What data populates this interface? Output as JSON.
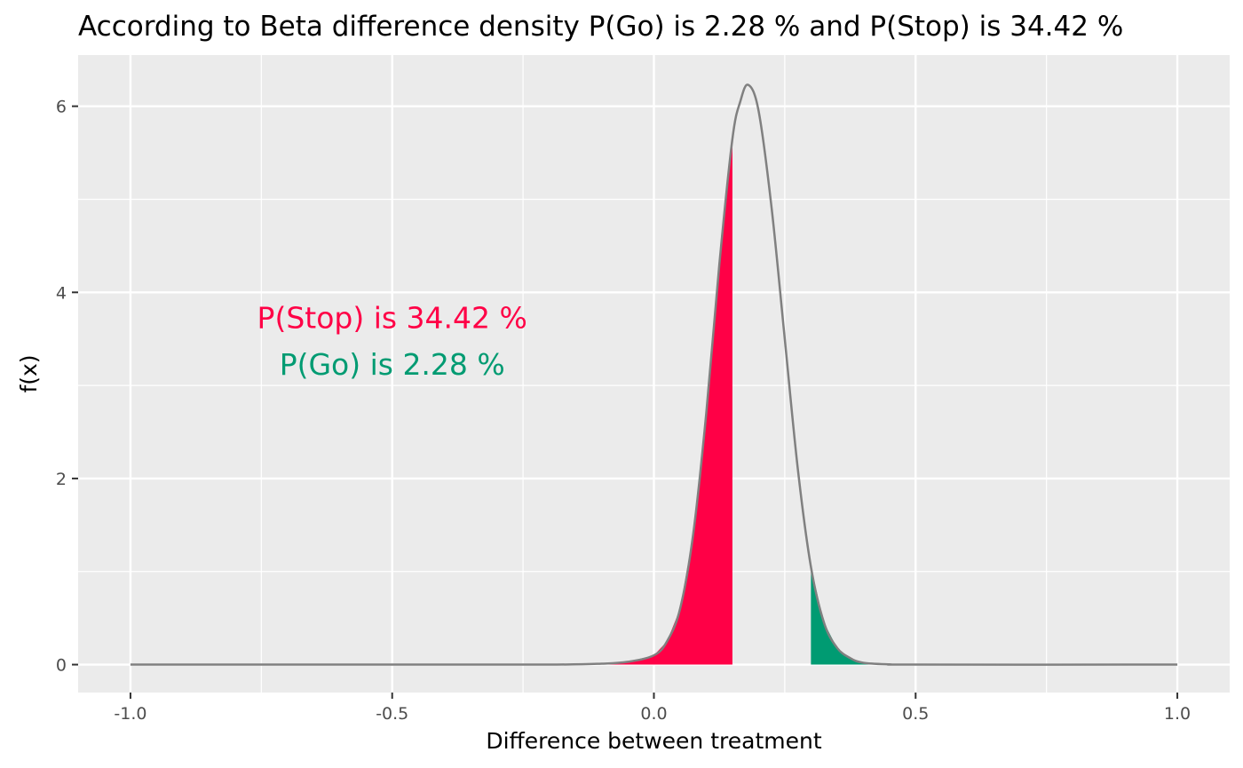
{
  "chart_data": {
    "type": "area",
    "title": "According to Beta difference density P(Go) is 2.28 % and P(Stop) is 34.42 %",
    "xlabel": "Difference between treatment",
    "ylabel": "f(x)",
    "xlim": [
      -1.1,
      1.1
    ],
    "ylim": [
      -0.3,
      6.55
    ],
    "x_ticks": [
      -1.0,
      -0.5,
      0.0,
      0.5,
      1.0
    ],
    "x_tick_labels": [
      "-1.0",
      "-0.5",
      "0.0",
      "0.5",
      "1.0"
    ],
    "y_ticks": [
      0,
      2,
      4,
      6
    ],
    "y_tick_labels": [
      "0",
      "2",
      "4",
      "6"
    ],
    "grid": true,
    "density_curve": {
      "x": [
        -1.0,
        -0.5,
        -0.2,
        -0.1,
        -0.05,
        0.0,
        0.025,
        0.05,
        0.075,
        0.1,
        0.125,
        0.15,
        0.165,
        0.18,
        0.2,
        0.225,
        0.25,
        0.275,
        0.3,
        0.325,
        0.35,
        0.375,
        0.4,
        0.45,
        0.5,
        1.0
      ],
      "y": [
        0,
        0,
        0,
        0.01,
        0.03,
        0.1,
        0.25,
        0.6,
        1.4,
        2.7,
        4.3,
        5.65,
        6.05,
        6.23,
        5.95,
        4.9,
        3.5,
        2.1,
        1.05,
        0.45,
        0.18,
        0.07,
        0.02,
        0.003,
        0,
        0
      ],
      "color": "#808080"
    },
    "regions": [
      {
        "name": "Stop",
        "x_from": -1.0,
        "x_to": 0.15,
        "color": "#FF0046"
      },
      {
        "name": "Go",
        "x_from": 0.3,
        "x_to": 1.0,
        "color": "#009B72"
      }
    ],
    "annotations": [
      {
        "text": "P(Stop) is 34.42 %",
        "x": -0.5,
        "y": 3.73,
        "color": "#FF0046"
      },
      {
        "text": "P(Go) is 2.28 %",
        "x": -0.5,
        "y": 3.23,
        "color": "#009B72"
      }
    ],
    "colors": {
      "panel_background": "#EBEBEB",
      "grid": "#FFFFFF",
      "tick": "#333333"
    }
  }
}
